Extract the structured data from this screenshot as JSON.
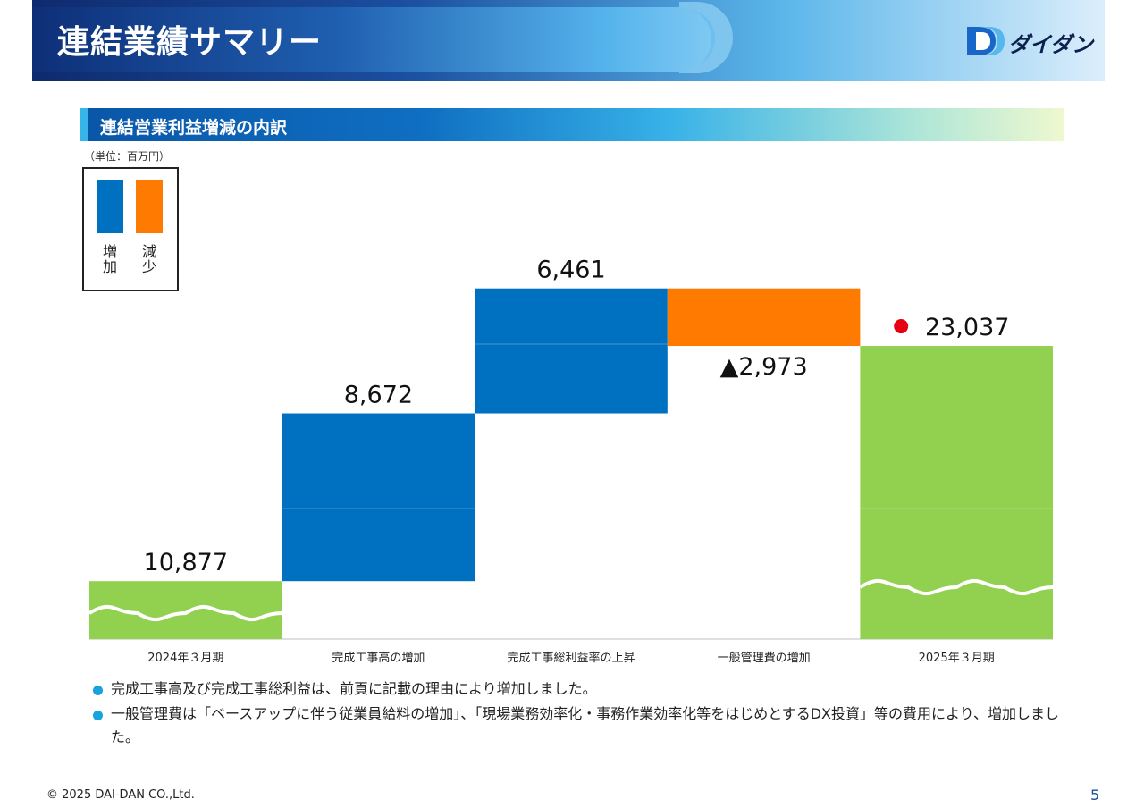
{
  "header": {
    "title": "連結業績サマリー",
    "logo_text": "ダイダン"
  },
  "section": {
    "title": "連結営業利益増減の内訳"
  },
  "unit_label": "（単位：百万円）",
  "legend": {
    "items": [
      {
        "label": "増加",
        "color": "#0070c0"
      },
      {
        "label": "減少",
        "color": "#ff7a00"
      }
    ]
  },
  "chart_data": {
    "type": "bar",
    "subtype": "waterfall",
    "categories": [
      "2024年３月期",
      "完成工事高の増加",
      "完成工事総利益率の上昇",
      "一般管理費の増加",
      "2025年３月期"
    ],
    "values": [
      10877,
      8672,
      6461,
      -2973,
      23037
    ],
    "value_labels": [
      "10,877",
      "8,672",
      "6,461",
      "▲2,973",
      "23,037"
    ],
    "bar_kinds": [
      "total",
      "increase",
      "increase",
      "decrease",
      "total"
    ],
    "colors": {
      "total": "#92d050",
      "increase": "#0070c0",
      "decrease": "#ff7a00",
      "highlight_dot": "#e60012"
    },
    "axis_broken": true,
    "highlight_last": true
  },
  "bullets": [
    "完成工事高及び完成工事総利益は、前頁に記載の理由により増加しました。",
    "一般管理費は「ベースアップに伴う従業員給料の増加」、「現場業務効率化・事務作業効率化等をはじめとするDX投資」等の費用により、増加しました。"
  ],
  "footer": {
    "copyright": "© 2025 DAI-DAN CO.,Ltd.",
    "page_number": "5"
  }
}
